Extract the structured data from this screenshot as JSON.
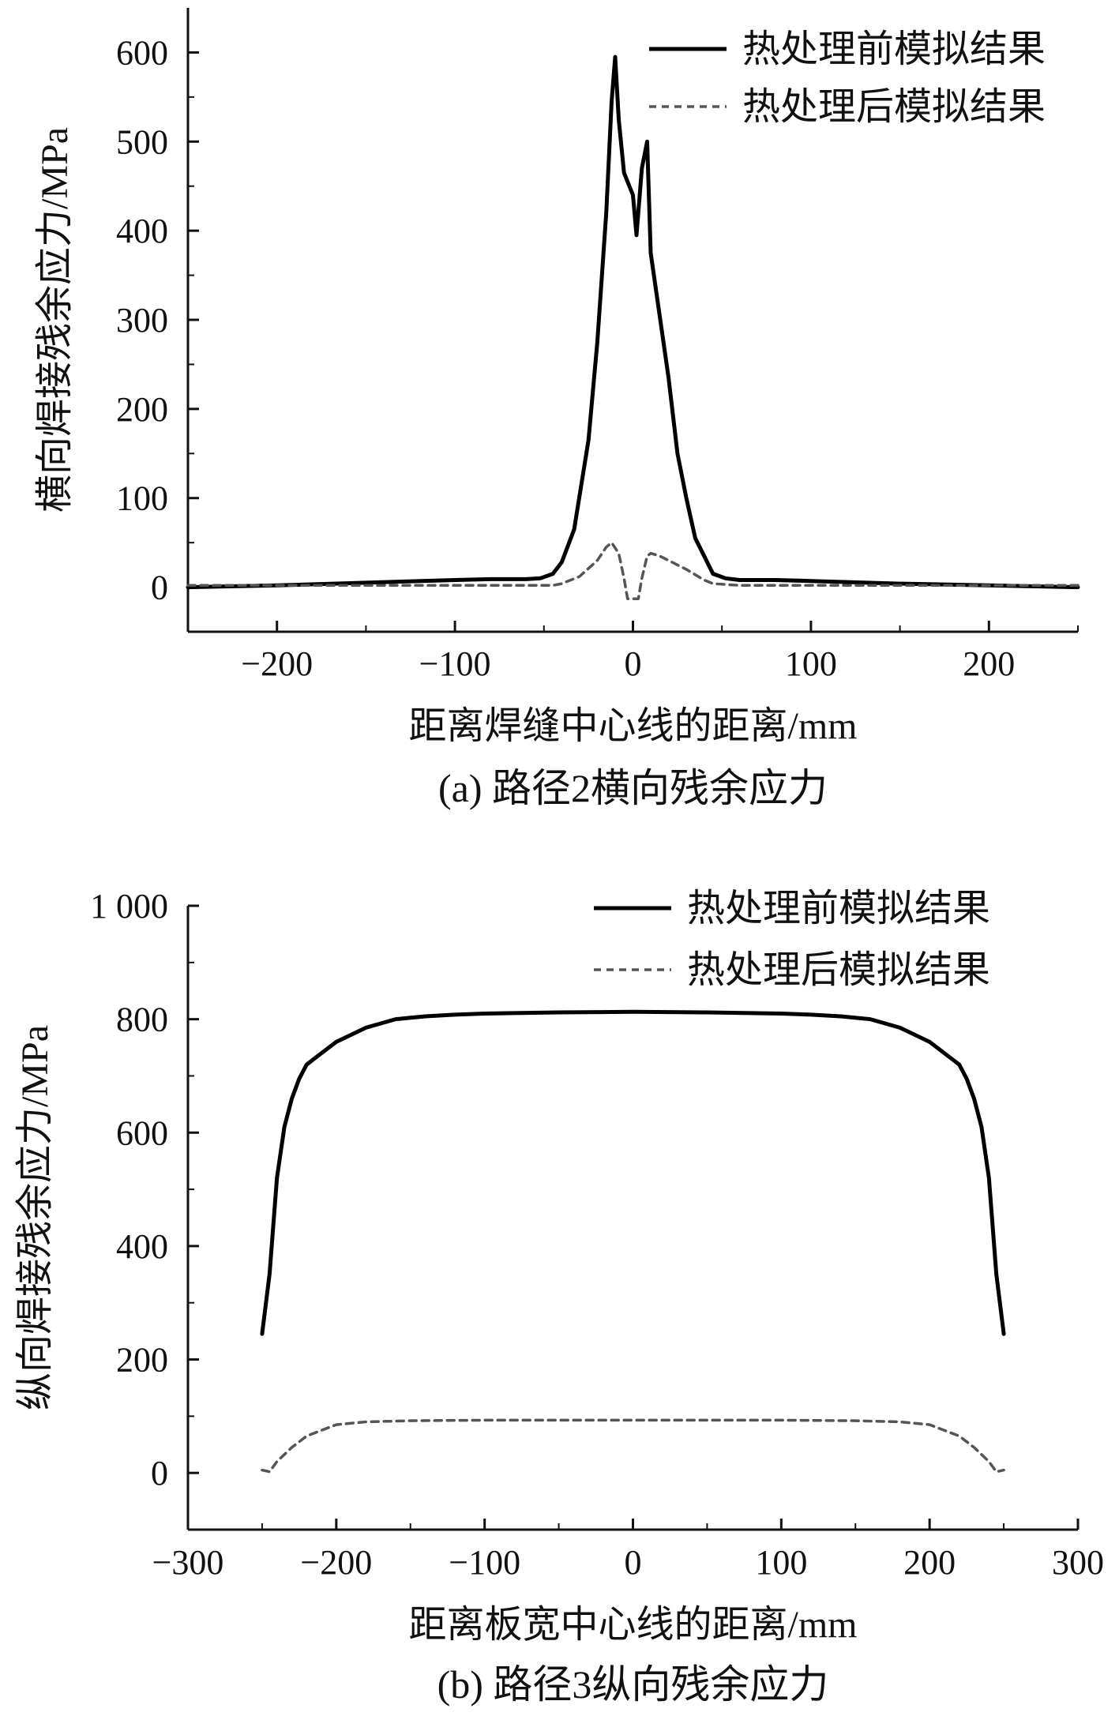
{
  "chart_data": [
    {
      "type": "line",
      "caption": "(a) 路径2横向残余应力",
      "xlabel": "距离焊缝中心线的距离/mm",
      "ylabel": "横向焊接残余应力/MPa",
      "xlim": [
        -250,
        250
      ],
      "ylim": [
        -50,
        650
      ],
      "xticks": [
        -200,
        -100,
        0,
        100,
        200
      ],
      "yticks": [
        0,
        100,
        200,
        300,
        400,
        500,
        600
      ],
      "xtick_labels": [
        "−200",
        "−100",
        "0",
        "100",
        "200"
      ],
      "ytick_labels": [
        "0",
        "100",
        "200",
        "300",
        "400",
        "500",
        "600"
      ],
      "legend_position": "top-right",
      "series": [
        {
          "name": "热处理前模拟结果",
          "style": "solid",
          "color": "#000000",
          "x": [
            -250,
            -200,
            -150,
            -100,
            -80,
            -60,
            -52,
            -45,
            -40,
            -33,
            -25,
            -20,
            -15,
            -12,
            -10,
            -8,
            -5,
            0,
            2,
            5,
            8,
            10,
            15,
            20,
            25,
            30,
            35,
            40,
            45,
            52,
            60,
            80,
            100,
            150,
            200,
            250
          ],
          "y": [
            0,
            2,
            5,
            8,
            9,
            9,
            10,
            15,
            28,
            65,
            165,
            275,
            420,
            545,
            595,
            525,
            465,
            440,
            395,
            470,
            500,
            375,
            305,
            235,
            150,
            100,
            55,
            35,
            15,
            10,
            8,
            8,
            7,
            4,
            2,
            0
          ]
        },
        {
          "name": "热处理后模拟结果",
          "style": "dashed",
          "color": "#555555",
          "x": [
            -250,
            -200,
            -150,
            -100,
            -60,
            -45,
            -40,
            -30,
            -20,
            -15,
            -12,
            -8,
            -5,
            -3,
            0,
            3,
            5,
            8,
            10,
            15,
            20,
            30,
            40,
            45,
            60,
            100,
            150,
            200,
            250
          ],
          "y": [
            2,
            2,
            2,
            2,
            2,
            2,
            4,
            12,
            30,
            45,
            50,
            38,
            10,
            -13,
            -13,
            -13,
            10,
            35,
            38,
            35,
            30,
            20,
            8,
            4,
            2,
            2,
            2,
            2,
            2
          ]
        }
      ]
    },
    {
      "type": "line",
      "caption": "(b) 路径3纵向残余应力",
      "xlabel": "距离板宽中心线的距离/mm",
      "ylabel": "纵向焊接残余应力/MPa",
      "xlim": [
        -300,
        300
      ],
      "ylim": [
        -100,
        1000
      ],
      "xticks": [
        -300,
        -200,
        -100,
        0,
        100,
        200,
        300
      ],
      "yticks": [
        0,
        200,
        400,
        600,
        800,
        1000
      ],
      "xtick_labels": [
        "−300",
        "−200",
        "−100",
        "0",
        "100",
        "200",
        "300"
      ],
      "ytick_labels": [
        "0",
        "200",
        "400",
        "600",
        "800",
        "1 000"
      ],
      "legend_position": "top-right",
      "series": [
        {
          "name": "热处理前模拟结果",
          "style": "solid",
          "color": "#000000",
          "x": [
            -250,
            -245,
            -240,
            -235,
            -230,
            -225,
            -220,
            -210,
            -200,
            -180,
            -160,
            -140,
            -120,
            -100,
            -50,
            0,
            50,
            100,
            120,
            140,
            160,
            180,
            200,
            210,
            220,
            225,
            230,
            235,
            240,
            245,
            250
          ],
          "y": [
            245,
            350,
            520,
            610,
            660,
            695,
            720,
            740,
            760,
            785,
            800,
            805,
            808,
            810,
            812,
            813,
            812,
            810,
            808,
            805,
            800,
            785,
            760,
            740,
            720,
            695,
            660,
            610,
            520,
            350,
            245
          ],
          "note_x_unit": "mm"
        },
        {
          "name": "热处理后模拟结果",
          "style": "dashed",
          "color": "#555555",
          "x": [
            -250,
            -245,
            -240,
            -230,
            -220,
            -210,
            -200,
            -180,
            -150,
            -100,
            -50,
            0,
            50,
            100,
            150,
            180,
            200,
            210,
            220,
            230,
            240,
            245,
            250
          ],
          "y": [
            5,
            2,
            20,
            45,
            65,
            75,
            85,
            90,
            92,
            93,
            93,
            93,
            93,
            93,
            92,
            90,
            85,
            75,
            65,
            45,
            20,
            2,
            5
          ]
        }
      ]
    }
  ]
}
